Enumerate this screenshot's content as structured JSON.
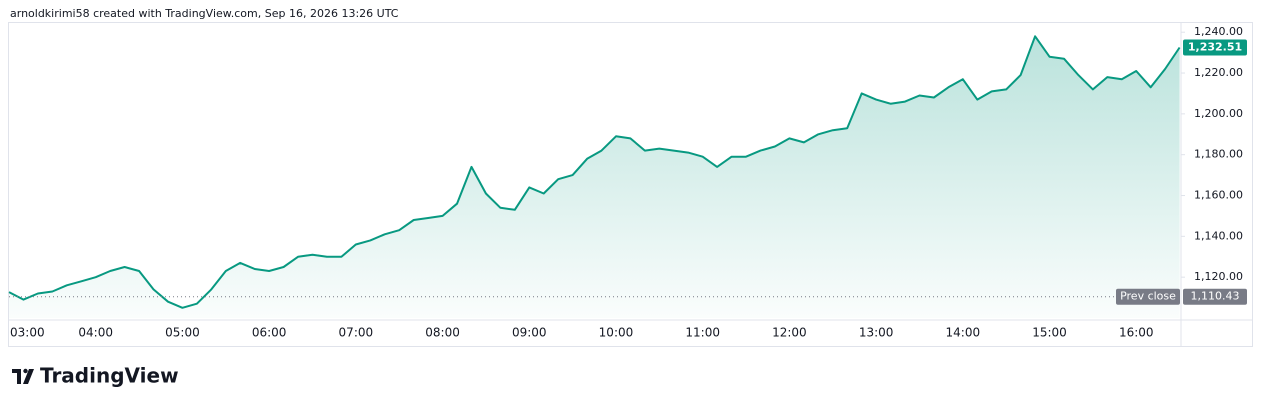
{
  "chart_data": {
    "type": "line",
    "header": "arnoldkirimi58 created with TradingView.com, Sep 16, 2026 13:26 UTC",
    "brand": "TradingView",
    "color": "#089981",
    "grid": false,
    "x": [
      "03:00",
      "03:10",
      "03:20",
      "03:30",
      "03:40",
      "03:50",
      "04:00",
      "04:10",
      "04:20",
      "04:30",
      "04:40",
      "04:50",
      "05:00",
      "05:10",
      "05:20",
      "05:30",
      "05:40",
      "05:50",
      "06:00",
      "06:10",
      "06:20",
      "06:30",
      "06:40",
      "06:50",
      "07:00",
      "07:10",
      "07:20",
      "07:30",
      "07:40",
      "07:50",
      "08:00",
      "08:10",
      "08:20",
      "08:30",
      "08:40",
      "08:50",
      "09:00",
      "09:10",
      "09:20",
      "09:30",
      "09:40",
      "09:50",
      "10:00",
      "10:10",
      "10:20",
      "10:30",
      "10:40",
      "10:50",
      "11:00",
      "11:10",
      "11:20",
      "11:30",
      "11:40",
      "11:50",
      "12:00",
      "12:10",
      "12:20",
      "12:30",
      "12:40",
      "12:50",
      "13:00",
      "13:10",
      "13:20",
      "13:30",
      "13:40",
      "13:50",
      "14:00",
      "14:10",
      "14:20",
      "14:30",
      "14:40",
      "14:50",
      "15:00",
      "15:10",
      "15:20",
      "15:30",
      "15:40",
      "15:50",
      "16:00",
      "16:10",
      "16:20",
      "16:30"
    ],
    "values": [
      1112.7,
      1109,
      1112,
      1113,
      1116,
      1118,
      1120,
      1123,
      1125,
      1123,
      1114,
      1108,
      1105,
      1107,
      1114,
      1123,
      1127,
      1124,
      1123,
      1125,
      1130,
      1131,
      1130,
      1130,
      1136,
      1138,
      1141,
      1143,
      1148,
      1149,
      1150,
      1156,
      1174,
      1161,
      1154,
      1153,
      1164,
      1161,
      1168,
      1170,
      1178,
      1182,
      1189,
      1188,
      1182,
      1183,
      1182,
      1181,
      1179,
      1174,
      1179,
      1179,
      1182,
      1184,
      1188,
      1186,
      1190,
      1192,
      1193,
      1210,
      1207,
      1205,
      1206,
      1209,
      1208,
      1213,
      1217,
      1207,
      1211,
      1212,
      1219,
      1238,
      1228,
      1227,
      1219,
      1212,
      1218,
      1217,
      1221,
      1213,
      1222,
      1232.51
    ],
    "last_label": "1,232.51",
    "xticks": [
      "03:00",
      "04:00",
      "05:00",
      "06:00",
      "07:00",
      "08:00",
      "09:00",
      "10:00",
      "11:00",
      "12:00",
      "13:00",
      "14:00",
      "15:00",
      "16:00"
    ],
    "ylim": [
      1100,
      1245
    ],
    "yticks": [
      {
        "value": 1120,
        "label": "1,120.00"
      },
      {
        "value": 1140,
        "label": "1,140.00"
      },
      {
        "value": 1160,
        "label": "1,160.00"
      },
      {
        "value": 1180,
        "label": "1,180.00"
      },
      {
        "value": 1200,
        "label": "1,200.00"
      },
      {
        "value": 1220,
        "label": "1,220.00"
      },
      {
        "value": 1240,
        "label": "1,240.00"
      }
    ],
    "prev_close": {
      "name": "Prev close",
      "value": 1110.43,
      "label": "1,110.43"
    }
  }
}
